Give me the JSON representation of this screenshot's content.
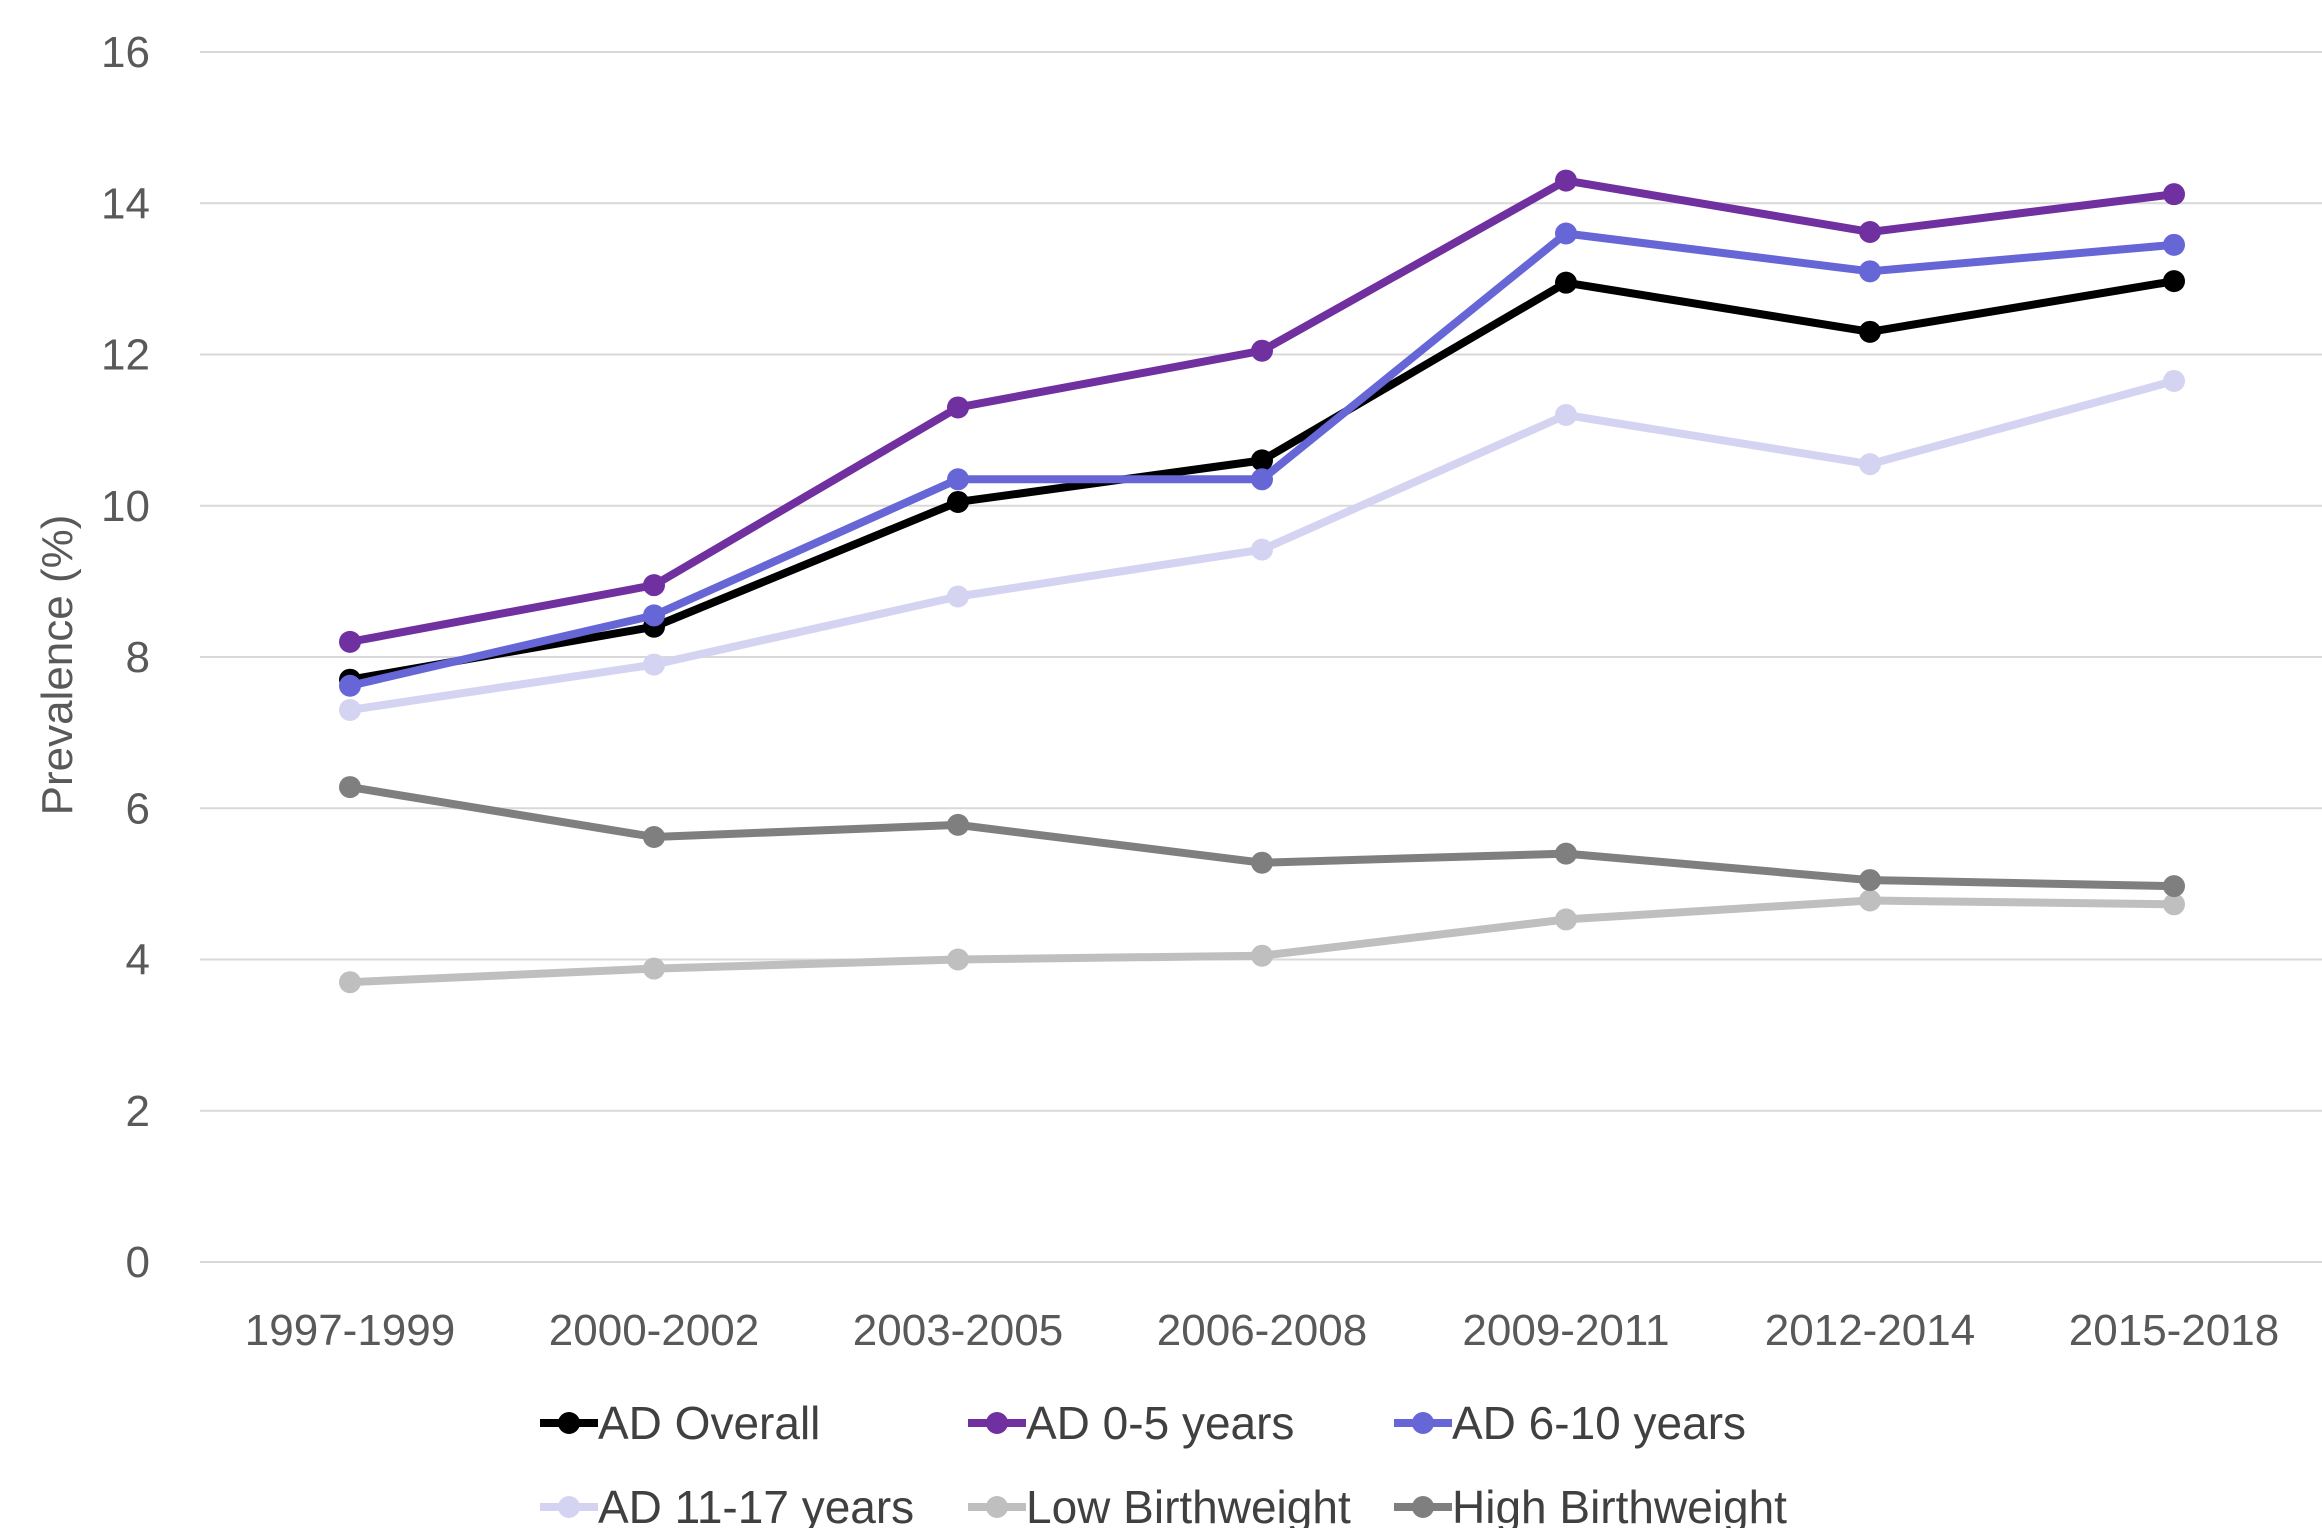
{
  "chart_data": {
    "type": "line",
    "title": "",
    "xlabel": "",
    "ylabel": "Prevalence (%)",
    "ylim": [
      0,
      16
    ],
    "yticks": [
      0,
      2,
      4,
      6,
      8,
      10,
      12,
      14,
      16
    ],
    "grid": true,
    "legend_position": "bottom",
    "categories": [
      "1997-1999",
      "2000-2002",
      "2003-2005",
      "2006-2008",
      "2009-2011",
      "2012-2014",
      "2015-2018"
    ],
    "series": [
      {
        "name": "AD Overall",
        "color": "#000000",
        "values": [
          7.7,
          8.4,
          10.05,
          10.6,
          12.95,
          12.3,
          12.97
        ]
      },
      {
        "name": "AD 0-5 years",
        "color": "#7030A0",
        "values": [
          8.2,
          8.95,
          11.3,
          12.05,
          14.3,
          13.62,
          14.12
        ]
      },
      {
        "name": "AD 6-10 years",
        "color": "#6666D6",
        "values": [
          7.62,
          8.55,
          10.35,
          10.35,
          13.6,
          13.1,
          13.45
        ]
      },
      {
        "name": "AD 11-17 years",
        "color": "#D4D4F2",
        "values": [
          7.3,
          7.9,
          8.8,
          9.42,
          11.2,
          10.55,
          11.65
        ]
      },
      {
        "name": "Low Birthweight",
        "color": "#BFBFBF",
        "values": [
          3.7,
          3.88,
          4.0,
          4.05,
          4.53,
          4.78,
          4.73
        ]
      },
      {
        "name": "High Birthweight",
        "color": "#7F7F7F",
        "values": [
          6.28,
          5.62,
          5.78,
          5.28,
          5.4,
          5.05,
          4.97
        ]
      }
    ]
  }
}
